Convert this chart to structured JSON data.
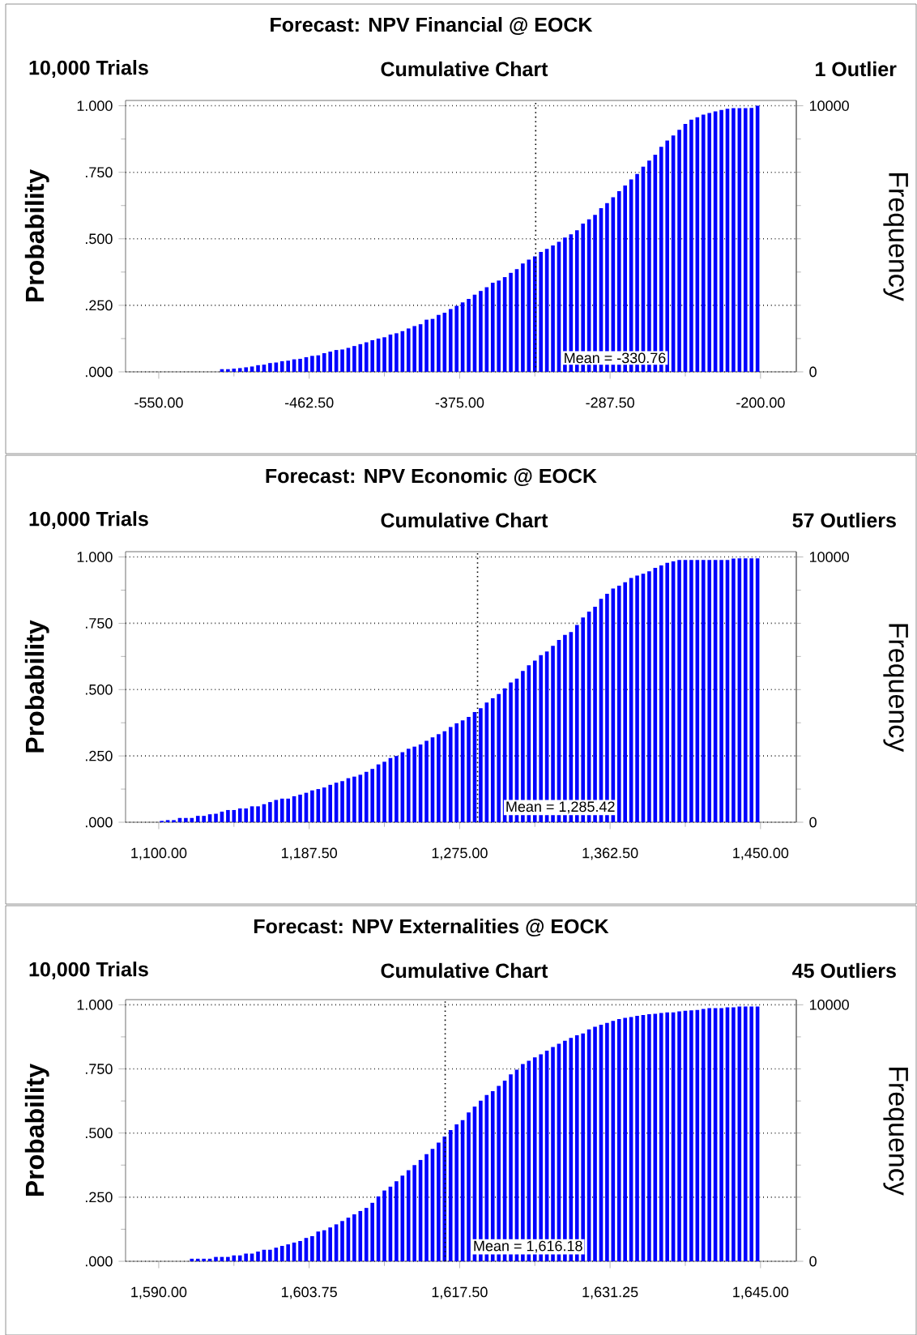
{
  "chart_data": [
    {
      "type": "histogram",
      "title": "Forecast: NPV Financial @ EOCK",
      "subtitle": "Cumulative Chart",
      "annotations": [
        "10,000 Trials",
        "1 Outlier"
      ],
      "ylabel": "Probability",
      "y2label": "Frequency",
      "color": "#0000ff",
      "bins": [
        -550,
        -546.5,
        -543,
        -539.5,
        -536,
        -532.5,
        -529,
        -525.5,
        -522,
        -518.5,
        -515,
        -511.5,
        -508,
        -504.5,
        -501,
        -497.5,
        -494,
        -490.5,
        -487,
        -483.5,
        -480,
        -476.5,
        -473,
        -469.5,
        -466,
        -462.5,
        -459,
        -455.5,
        -452,
        -448.5,
        -445,
        -441.5,
        -438,
        -434.5,
        -431,
        -427.5,
        -424,
        -420.5,
        -417,
        -413.5,
        -410,
        -406.5,
        -403,
        -399.5,
        -396,
        -392.5,
        -389,
        -385.5,
        -382,
        -378.5,
        -375,
        -371.5,
        -368,
        -364.5,
        -361,
        -357.5,
        -354,
        -350.5,
        -347,
        -343.5,
        -340,
        -336.5,
        -333,
        -329.5,
        -326,
        -322.5,
        -319,
        -315.5,
        -312,
        -308.5,
        -305,
        -301.5,
        -298,
        -294.5,
        -291,
        -287.5,
        -284,
        -280.5,
        -277,
        -273.5,
        -270,
        -266.5,
        -263,
        -259.5,
        -256,
        -252.5,
        -249,
        -245.5,
        -242,
        -238.5,
        -235,
        -231.5,
        -228,
        -224.5,
        -221,
        -217.5,
        -214,
        -210.5,
        -207,
        -203.5,
        -200
      ],
      "values": [
        0,
        0,
        0,
        0,
        0,
        0,
        0,
        0,
        0,
        0,
        0.01,
        0.01,
        0.012,
        0.014,
        0.017,
        0.02,
        0.025,
        0.027,
        0.033,
        0.035,
        0.04,
        0.042,
        0.047,
        0.049,
        0.055,
        0.06,
        0.062,
        0.07,
        0.076,
        0.082,
        0.084,
        0.09,
        0.097,
        0.104,
        0.111,
        0.119,
        0.125,
        0.13,
        0.14,
        0.145,
        0.153,
        0.163,
        0.172,
        0.179,
        0.196,
        0.199,
        0.214,
        0.222,
        0.236,
        0.248,
        0.261,
        0.274,
        0.29,
        0.304,
        0.318,
        0.335,
        0.343,
        0.356,
        0.372,
        0.386,
        0.407,
        0.422,
        0.434,
        0.451,
        0.462,
        0.475,
        0.489,
        0.505,
        0.517,
        0.532,
        0.557,
        0.573,
        0.59,
        0.615,
        0.634,
        0.656,
        0.679,
        0.7,
        0.723,
        0.744,
        0.771,
        0.794,
        0.816,
        0.846,
        0.869,
        0.888,
        0.91,
        0.932,
        0.948,
        0.957,
        0.967,
        0.973,
        0.979,
        0.984,
        0.989,
        0.991,
        0.991,
        0.991,
        0.992,
        1.0
      ],
      "xlim": [
        -569.3,
        -179.2
      ],
      "xticks": [
        {
          "value": -550,
          "label": "-550.00"
        },
        {
          "value": -462.5,
          "label": "-462.50"
        },
        {
          "value": -375,
          "label": "-375.00"
        },
        {
          "value": -287.5,
          "label": "-287.50"
        },
        {
          "value": -200,
          "label": "-200.00"
        }
      ],
      "ylim": [
        0,
        1.02
      ],
      "yticks": [
        {
          "value": 0,
          "label": ".000"
        },
        {
          "value": 0.25,
          "label": ".250"
        },
        {
          "value": 0.5,
          "label": ".500"
        },
        {
          "value": 0.75,
          "label": ".750"
        },
        {
          "value": 1,
          "label": "1.000"
        }
      ],
      "y2lim": [
        0,
        10200
      ],
      "y2ticks": [
        0,
        10000
      ],
      "grid": "y",
      "ref_lines": [
        {
          "axis": "x",
          "value": -330.76,
          "label": "Mean = -330.76",
          "color": "#000000",
          "line_style": "dotted"
        }
      ]
    },
    {
      "type": "histogram",
      "title": "Forecast: NPV Economic @ EOCK",
      "subtitle": "Cumulative Chart",
      "annotations": [
        "10,000 Trials",
        "57 Outliers"
      ],
      "ylabel": "Probability",
      "y2label": "Frequency",
      "color": "#0000ff",
      "bins": [
        1100,
        1103.5,
        1107,
        1110.5,
        1114,
        1117.5,
        1121,
        1124.5,
        1128,
        1131.5,
        1135,
        1138.5,
        1142,
        1145.5,
        1149,
        1152.5,
        1156,
        1159.5,
        1163,
        1166.5,
        1170,
        1173.5,
        1177,
        1180.5,
        1184,
        1187.5,
        1191,
        1194.5,
        1198,
        1201.5,
        1205,
        1208.5,
        1212,
        1215.5,
        1219,
        1222.5,
        1226,
        1229.5,
        1233,
        1236.5,
        1240,
        1243.5,
        1247,
        1250.5,
        1254,
        1257.5,
        1261,
        1264.5,
        1268,
        1271.5,
        1275,
        1278.5,
        1282,
        1285.5,
        1289,
        1292.5,
        1296,
        1299.5,
        1303,
        1306.5,
        1310,
        1313.5,
        1317,
        1320.5,
        1324,
        1327.5,
        1331,
        1334.5,
        1338,
        1341.5,
        1345,
        1348.5,
        1352,
        1355.5,
        1359,
        1362.5,
        1366,
        1369.5,
        1373,
        1376.5,
        1380,
        1383.5,
        1387,
        1390.5,
        1394,
        1397.5,
        1401,
        1404.5,
        1408,
        1411.5,
        1415,
        1418.5,
        1422,
        1425.5,
        1429,
        1432.5,
        1436,
        1439.5,
        1443,
        1446.5,
        1450
      ],
      "values": [
        0.005,
        0.008,
        0.008,
        0.016,
        0.016,
        0.016,
        0.024,
        0.024,
        0.03,
        0.032,
        0.04,
        0.046,
        0.046,
        0.052,
        0.052,
        0.06,
        0.06,
        0.068,
        0.076,
        0.084,
        0.089,
        0.089,
        0.098,
        0.104,
        0.111,
        0.12,
        0.125,
        0.131,
        0.141,
        0.149,
        0.155,
        0.166,
        0.172,
        0.179,
        0.19,
        0.201,
        0.218,
        0.228,
        0.242,
        0.25,
        0.264,
        0.277,
        0.285,
        0.293,
        0.307,
        0.32,
        0.332,
        0.343,
        0.359,
        0.373,
        0.384,
        0.397,
        0.415,
        0.43,
        0.451,
        0.467,
        0.483,
        0.505,
        0.527,
        0.541,
        0.57,
        0.592,
        0.609,
        0.63,
        0.644,
        0.665,
        0.687,
        0.706,
        0.717,
        0.744,
        0.772,
        0.794,
        0.812,
        0.842,
        0.861,
        0.881,
        0.892,
        0.905,
        0.921,
        0.93,
        0.937,
        0.946,
        0.959,
        0.968,
        0.978,
        0.983,
        0.989,
        0.989,
        0.989,
        0.989,
        0.989,
        0.989,
        0.989,
        0.989,
        0.989,
        0.994,
        0.995,
        0.995,
        0.995,
        0.995
      ],
      "xlim": [
        1080.7,
        1470.8
      ],
      "xticks": [
        {
          "value": 1100,
          "label": "1,100.00"
        },
        {
          "value": 1187.5,
          "label": "1,187.50"
        },
        {
          "value": 1275,
          "label": "1,275.00"
        },
        {
          "value": 1362.5,
          "label": "1,362.50"
        },
        {
          "value": 1450,
          "label": "1,450.00"
        }
      ],
      "ylim": [
        0,
        1.02
      ],
      "yticks": [
        {
          "value": 0,
          "label": ".000"
        },
        {
          "value": 0.25,
          "label": ".250"
        },
        {
          "value": 0.5,
          "label": ".500"
        },
        {
          "value": 0.75,
          "label": ".750"
        },
        {
          "value": 1,
          "label": "1.000"
        }
      ],
      "y2lim": [
        0,
        10200
      ],
      "y2ticks": [
        0,
        10000
      ],
      "grid": "y",
      "ref_lines": [
        {
          "axis": "x",
          "value": 1285.42,
          "label": "Mean = 1,285.42",
          "color": "#000000",
          "line_style": "dotted"
        }
      ]
    },
    {
      "type": "histogram",
      "title": "Forecast: NPV Externalities @ EOCK",
      "subtitle": "Cumulative Chart",
      "annotations": [
        "10,000 Trials",
        "45 Outliers"
      ],
      "ylabel": "Probability",
      "y2label": "Frequency",
      "color": "#0000ff",
      "bins": [
        1590,
        1590.55,
        1591.1,
        1591.65,
        1592.2,
        1592.75,
        1593.3,
        1593.85,
        1594.4,
        1594.95,
        1595.5,
        1596.05,
        1596.6,
        1597.15,
        1597.7,
        1598.25,
        1598.8,
        1599.35,
        1599.9,
        1600.45,
        1601,
        1601.55,
        1602.1,
        1602.65,
        1603.2,
        1603.75,
        1604.3,
        1604.85,
        1605.4,
        1605.95,
        1606.5,
        1607.05,
        1607.6,
        1608.15,
        1608.7,
        1609.25,
        1609.8,
        1610.35,
        1610.9,
        1611.45,
        1612,
        1612.55,
        1613.1,
        1613.65,
        1614.2,
        1614.75,
        1615.3,
        1615.85,
        1616.4,
        1616.95,
        1617.5,
        1618.05,
        1618.6,
        1619.15,
        1619.7,
        1620.25,
        1620.8,
        1621.35,
        1621.9,
        1622.45,
        1623,
        1623.55,
        1624.1,
        1624.65,
        1625.2,
        1625.75,
        1626.3,
        1626.85,
        1627.4,
        1627.95,
        1628.5,
        1629.05,
        1629.6,
        1630.15,
        1630.7,
        1631.25,
        1631.8,
        1632.35,
        1632.9,
        1633.45,
        1634,
        1634.55,
        1635.1,
        1635.65,
        1636.2,
        1636.75,
        1637.3,
        1637.85,
        1638.4,
        1638.95,
        1639.5,
        1640.05,
        1640.6,
        1641.15,
        1641.7,
        1642.25,
        1642.8,
        1643.35,
        1643.9,
        1644.45,
        1645
      ],
      "values": [
        0,
        0,
        0,
        0,
        0,
        0.01,
        0.01,
        0.01,
        0.01,
        0.017,
        0.017,
        0.017,
        0.023,
        0.023,
        0.03,
        0.03,
        0.038,
        0.045,
        0.045,
        0.053,
        0.06,
        0.066,
        0.073,
        0.079,
        0.091,
        0.098,
        0.116,
        0.121,
        0.132,
        0.144,
        0.157,
        0.17,
        0.183,
        0.196,
        0.208,
        0.228,
        0.253,
        0.276,
        0.291,
        0.312,
        0.334,
        0.355,
        0.375,
        0.395,
        0.418,
        0.438,
        0.463,
        0.486,
        0.512,
        0.534,
        0.55,
        0.58,
        0.603,
        0.626,
        0.648,
        0.663,
        0.684,
        0.704,
        0.729,
        0.747,
        0.769,
        0.782,
        0.795,
        0.807,
        0.821,
        0.835,
        0.848,
        0.86,
        0.871,
        0.881,
        0.888,
        0.904,
        0.914,
        0.922,
        0.929,
        0.937,
        0.944,
        0.949,
        0.952,
        0.957,
        0.96,
        0.963,
        0.965,
        0.968,
        0.97,
        0.97,
        0.974,
        0.977,
        0.978,
        0.98,
        0.984,
        0.987,
        0.987,
        0.987,
        0.99,
        0.99,
        0.993,
        0.993,
        0.993,
        0.993
      ],
      "xlim": [
        1586.97,
        1648.27
      ],
      "xticks": [
        {
          "value": 1590,
          "label": "1,590.00"
        },
        {
          "value": 1603.75,
          "label": "1,603.75"
        },
        {
          "value": 1617.5,
          "label": "1,617.50"
        },
        {
          "value": 1631.25,
          "label": "1,631.25"
        },
        {
          "value": 1645,
          "label": "1,645.00"
        }
      ],
      "ylim": [
        0,
        1.02
      ],
      "yticks": [
        {
          "value": 0,
          "label": ".000"
        },
        {
          "value": 0.25,
          "label": ".250"
        },
        {
          "value": 0.5,
          "label": ".500"
        },
        {
          "value": 0.75,
          "label": ".750"
        },
        {
          "value": 1,
          "label": "1.000"
        }
      ],
      "y2lim": [
        0,
        10200
      ],
      "y2ticks": [
        0,
        10000
      ],
      "grid": "y",
      "ref_lines": [
        {
          "axis": "x",
          "value": 1616.18,
          "label": "Mean = 1,616.18",
          "color": "#000000",
          "line_style": "dotted"
        }
      ]
    }
  ]
}
